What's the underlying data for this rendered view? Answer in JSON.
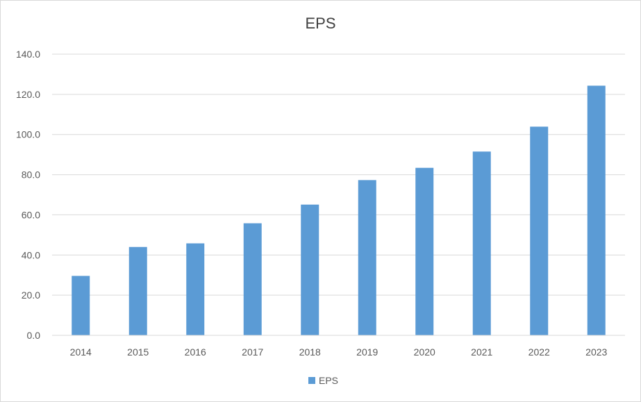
{
  "chart_data": {
    "type": "bar",
    "title": "EPS",
    "categories": [
      "2014",
      "2015",
      "2016",
      "2017",
      "2018",
      "2019",
      "2020",
      "2021",
      "2022",
      "2023"
    ],
    "series": [
      {
        "name": "EPS",
        "color": "#5b9bd5",
        "values": [
          29.6,
          44.0,
          45.8,
          55.8,
          65.1,
          77.3,
          83.4,
          91.5,
          103.9,
          124.3
        ]
      }
    ],
    "yticks": [
      "0.0",
      "20.0",
      "40.0",
      "60.0",
      "80.0",
      "100.0",
      "120.0",
      "140.0"
    ],
    "ylim": [
      0,
      140
    ],
    "grid": true,
    "legend_position": "bottom"
  }
}
